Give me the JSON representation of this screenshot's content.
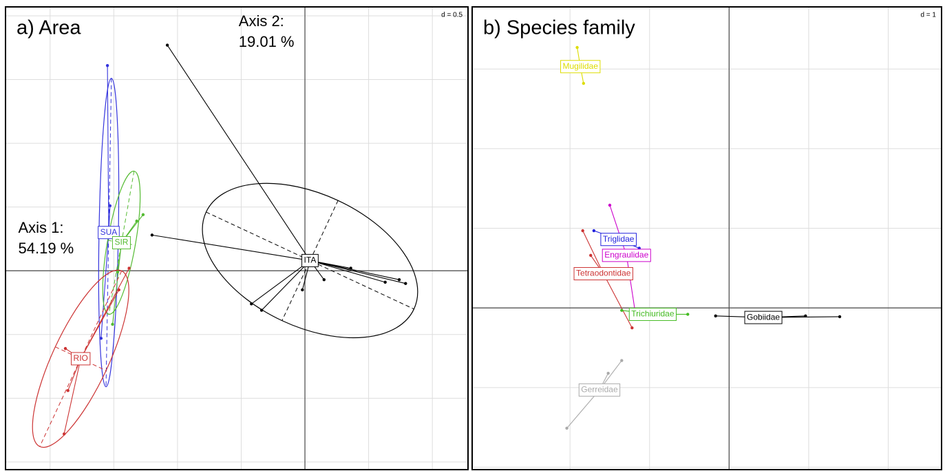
{
  "chart_data": [
    {
      "type": "scatter",
      "title": "a) Area",
      "scale_note": "d = 0.5",
      "annotations": [
        {
          "lines": [
            "Axis 2:",
            "19.01 %"
          ],
          "x": -0.52,
          "y": 1.95
        },
        {
          "lines": [
            "Axis 1:",
            "54.19 %"
          ],
          "x": -2.25,
          "y": 0.33
        }
      ],
      "xlim": [
        -2.35,
        1.28
      ],
      "ylim": [
        -1.56,
        2.07
      ],
      "xticks": [
        -2,
        -1.5,
        -1,
        -0.5,
        0,
        0.5,
        1
      ],
      "yticks": [
        -1.5,
        -1,
        -0.5,
        0,
        0.5,
        1,
        1.5,
        2
      ],
      "grid": true,
      "classes": [
        {
          "name": "ITA",
          "color": "#000000",
          "centroid": [
            0.04,
            0.08
          ],
          "ellipse": {
            "rx": 0.9,
            "ry": 0.52,
            "angle": -25
          },
          "points": [
            [
              -1.08,
              1.77
            ],
            [
              -1.2,
              0.28
            ],
            [
              -0.34,
              -0.31
            ],
            [
              -0.42,
              -0.26
            ],
            [
              0.79,
              -0.1
            ],
            [
              0.74,
              -0.07
            ],
            [
              0.63,
              -0.09
            ],
            [
              0.36,
              0.02
            ],
            [
              -0.02,
              -0.15
            ],
            [
              0.15,
              -0.07
            ]
          ]
        },
        {
          "name": "SUA",
          "color": "#3333dd",
          "centroid": [
            -1.54,
            0.3
          ],
          "ellipse": {
            "rx": 0.076,
            "ry": 1.21,
            "angle": -1
          },
          "points": [
            [
              -1.55,
              1.61
            ],
            [
              -1.6,
              -0.53
            ],
            [
              -1.53,
              0.51
            ]
          ]
        },
        {
          "name": "SIR",
          "color": "#55bb33",
          "centroid": [
            -1.44,
            0.22
          ],
          "ellipse": {
            "rx": 0.11,
            "ry": 0.57,
            "angle": -10
          },
          "points": [
            [
              -1.27,
              0.44
            ],
            [
              -1.32,
              0.39
            ],
            [
              -1.51,
              -0.42
            ],
            [
              -1.47,
              -0.01
            ]
          ]
        },
        {
          "name": "RIO",
          "color": "#cc3333",
          "centroid": [
            -1.76,
            -0.69
          ],
          "ellipse": {
            "rx": 0.22,
            "ry": 0.76,
            "angle": -25
          },
          "points": [
            [
              -1.38,
              0.02
            ],
            [
              -1.88,
              -0.61
            ],
            [
              -1.89,
              -1.28
            ],
            [
              -1.86,
              -0.94
            ],
            [
              -1.46,
              -0.15
            ]
          ]
        }
      ]
    },
    {
      "type": "scatter",
      "title": "b) Species family",
      "scale_note": "d = 1",
      "xlim": [
        -3.23,
        2.67
      ],
      "ylim": [
        -2.03,
        3.78
      ],
      "xticks": [
        -2,
        -1,
        0,
        1,
        2
      ],
      "yticks": [
        -2,
        -1,
        0,
        1,
        2,
        3
      ],
      "grid": true,
      "classes": [
        {
          "name": "Mugilidae",
          "color": "#dddd00",
          "centroid": [
            -1.87,
            3.03
          ],
          "points": [
            [
              -1.91,
              3.27
            ],
            [
              -1.83,
              2.82
            ]
          ]
        },
        {
          "name": "Gerreidae",
          "color": "#aaaaaa",
          "centroid": [
            -1.63,
            -1.03
          ],
          "points": [
            [
              -2.04,
              -1.51
            ],
            [
              -1.35,
              -0.66
            ],
            [
              -1.52,
              -0.82
            ]
          ]
        },
        {
          "name": "Tetraodontidae",
          "color": "#cc3333",
          "centroid": [
            -1.58,
            0.43
          ],
          "points": [
            [
              -1.84,
              0.97
            ],
            [
              -1.22,
              -0.25
            ],
            [
              -1.74,
              0.66
            ]
          ]
        },
        {
          "name": "Engraulidae",
          "color": "#cc00cc",
          "centroid": [
            -1.29,
            0.66
          ],
          "points": [
            [
              -1.5,
              1.29
            ],
            [
              -1.17,
              -0.12
            ]
          ]
        },
        {
          "name": "Triglidae",
          "color": "#2222dd",
          "centroid": [
            -1.39,
            0.86
          ],
          "points": [
            [
              -1.7,
              0.97
            ],
            [
              -1.13,
              0.75
            ]
          ]
        },
        {
          "name": "Trichiuridae",
          "color": "#44bb22",
          "centroid": [
            -0.96,
            -0.08
          ],
          "points": [
            [
              -1.35,
              -0.03
            ],
            [
              -0.52,
              -0.08
            ]
          ]
        },
        {
          "name": "Gobiidae",
          "color": "#000000",
          "centroid": [
            0.43,
            -0.12
          ],
          "points": [
            [
              -0.17,
              -0.1
            ],
            [
              0.96,
              -0.1
            ],
            [
              1.39,
              -0.11
            ]
          ]
        }
      ]
    }
  ]
}
